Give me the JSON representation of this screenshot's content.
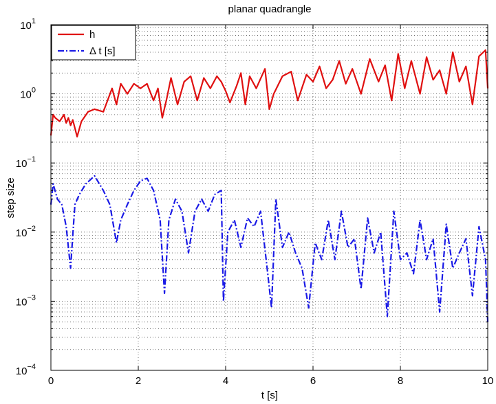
{
  "chart_data": {
    "type": "line",
    "title": "planar quadrangle",
    "xlabel": "t [s]",
    "ylabel": "step size",
    "xlim": [
      0,
      10
    ],
    "ylim_log10": [
      -4,
      1
    ],
    "yscale": "log",
    "grid": "major-and-minor-dotted",
    "legend_position": "top-left",
    "x_ticks": [
      0,
      2,
      4,
      6,
      8,
      10
    ],
    "y_tick_exponents": [
      -4,
      -3,
      -2,
      -1,
      0,
      1
    ],
    "y_tick_base": "10",
    "series": [
      {
        "name": "h",
        "color": "#e01010",
        "style": "solid",
        "x": [
          0,
          0.05,
          0.1,
          0.2,
          0.3,
          0.35,
          0.4,
          0.45,
          0.5,
          0.6,
          0.7,
          0.85,
          1.0,
          1.2,
          1.4,
          1.5,
          1.6,
          1.75,
          1.9,
          2.05,
          2.2,
          2.35,
          2.45,
          2.55,
          2.65,
          2.75,
          2.9,
          3.05,
          3.2,
          3.35,
          3.5,
          3.65,
          3.8,
          3.9,
          4.0,
          4.1,
          4.25,
          4.35,
          4.45,
          4.55,
          4.7,
          4.9,
          5.0,
          5.1,
          5.3,
          5.5,
          5.65,
          5.85,
          6.0,
          6.15,
          6.3,
          6.45,
          6.6,
          6.75,
          6.9,
          7.1,
          7.3,
          7.5,
          7.65,
          7.8,
          7.95,
          8.1,
          8.25,
          8.45,
          8.6,
          8.75,
          8.9,
          9.05,
          9.2,
          9.35,
          9.5,
          9.65,
          9.8,
          9.95,
          10.0
        ],
        "y": [
          0.25,
          0.5,
          0.45,
          0.4,
          0.5,
          0.38,
          0.45,
          0.35,
          0.42,
          0.24,
          0.4,
          0.55,
          0.6,
          0.55,
          1.2,
          0.7,
          1.4,
          1.0,
          1.4,
          1.2,
          1.4,
          0.8,
          1.2,
          0.45,
          0.85,
          1.7,
          0.7,
          1.5,
          1.8,
          0.8,
          1.7,
          1.2,
          1.8,
          1.5,
          1.1,
          0.75,
          1.3,
          2.0,
          0.7,
          1.8,
          1.2,
          2.3,
          0.6,
          1.0,
          1.8,
          2.1,
          0.8,
          1.9,
          1.5,
          2.5,
          1.2,
          1.6,
          3.0,
          1.4,
          2.3,
          1.0,
          3.2,
          1.5,
          2.6,
          0.8,
          3.8,
          1.2,
          3.0,
          1.0,
          3.4,
          1.6,
          2.2,
          1.0,
          4.0,
          1.5,
          2.5,
          0.7,
          3.5,
          4.3,
          1.2
        ]
      },
      {
        "name": "Δ t [s]",
        "color": "#1a1ae6",
        "style": "dash-dot",
        "x": [
          0,
          0.05,
          0.15,
          0.25,
          0.35,
          0.45,
          0.5,
          0.55,
          0.65,
          0.8,
          1.0,
          1.2,
          1.35,
          1.5,
          1.6,
          1.75,
          1.9,
          2.05,
          2.2,
          2.35,
          2.5,
          2.6,
          2.7,
          2.85,
          3.0,
          3.15,
          3.3,
          3.45,
          3.6,
          3.75,
          3.9,
          3.95,
          4.05,
          4.2,
          4.35,
          4.5,
          4.65,
          4.8,
          4.95,
          5.05,
          5.15,
          5.3,
          5.45,
          5.6,
          5.75,
          5.9,
          6.05,
          6.2,
          6.35,
          6.5,
          6.65,
          6.8,
          6.95,
          7.1,
          7.25,
          7.4,
          7.55,
          7.7,
          7.85,
          8.0,
          8.15,
          8.3,
          8.45,
          8.6,
          8.75,
          8.9,
          9.05,
          9.2,
          9.35,
          9.5,
          9.65,
          9.8,
          9.95,
          10.0
        ],
        "y": [
          0.025,
          0.05,
          0.03,
          0.025,
          0.012,
          0.003,
          0.009,
          0.025,
          0.035,
          0.05,
          0.065,
          0.04,
          0.025,
          0.007,
          0.015,
          0.025,
          0.04,
          0.055,
          0.06,
          0.04,
          0.015,
          0.0013,
          0.015,
          0.03,
          0.02,
          0.005,
          0.02,
          0.03,
          0.02,
          0.035,
          0.04,
          0.001,
          0.01,
          0.015,
          0.006,
          0.016,
          0.012,
          0.02,
          0.003,
          0.0008,
          0.03,
          0.006,
          0.01,
          0.005,
          0.003,
          0.0008,
          0.007,
          0.004,
          0.015,
          0.004,
          0.02,
          0.006,
          0.008,
          0.0015,
          0.016,
          0.005,
          0.01,
          0.0006,
          0.02,
          0.004,
          0.005,
          0.0025,
          0.015,
          0.004,
          0.008,
          0.0007,
          0.013,
          0.003,
          0.005,
          0.008,
          0.0012,
          0.012,
          0.004,
          0.0005
        ]
      }
    ]
  }
}
